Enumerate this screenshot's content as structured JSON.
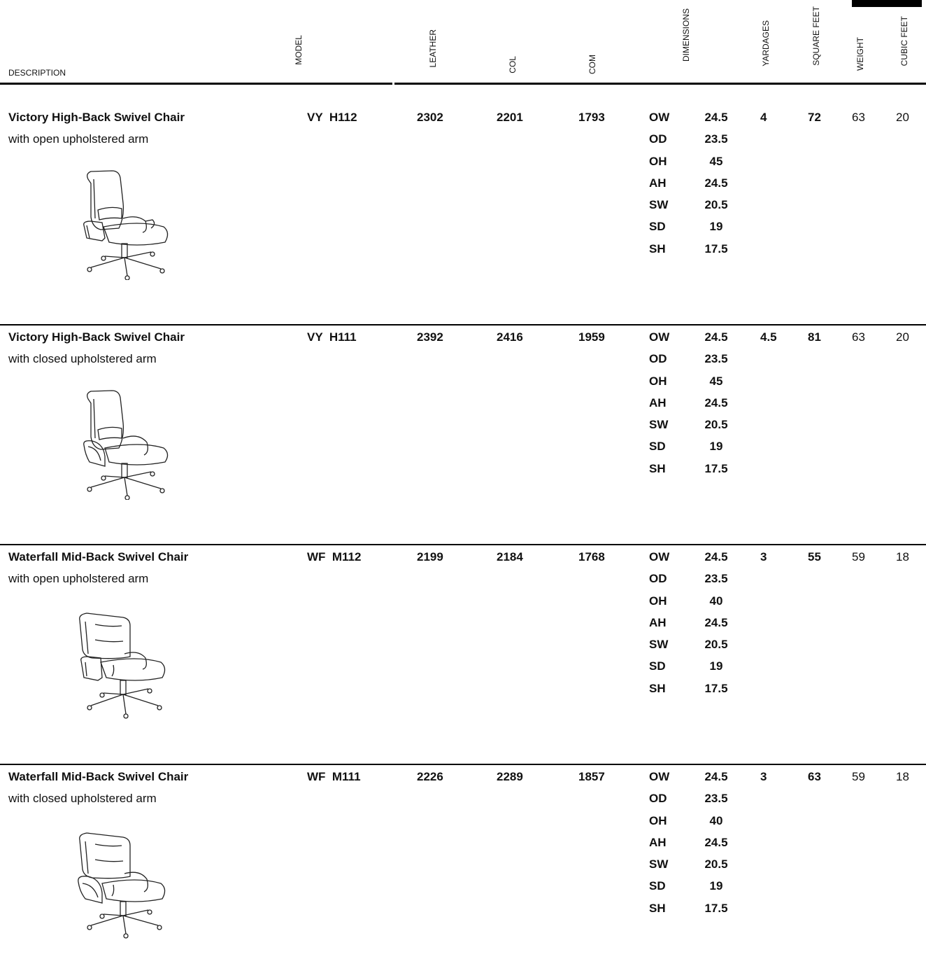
{
  "headers": {
    "description": "DESCRIPTION",
    "model": "MODEL",
    "leather": "LEATHER",
    "col": "COL",
    "com": "COM",
    "dimensions": "DIMENSIONS",
    "yardages": "YARDAGES",
    "square_feet": "SQUARE FEET",
    "weight": "WEIGHT",
    "cubic_feet": "CUBIC FEET"
  },
  "products": [
    {
      "title": "Victory High-Back Swivel Chair",
      "subtitle": "with open upholstered arm",
      "model": "VY  H112",
      "leather": "2302",
      "col": "2201",
      "com": "1793",
      "dimensions": [
        {
          "code": "OW",
          "value": "24.5"
        },
        {
          "code": "OD",
          "value": "23.5"
        },
        {
          "code": "OH",
          "value": "45"
        },
        {
          "code": "AH",
          "value": "24.5"
        },
        {
          "code": "SW",
          "value": "20.5"
        },
        {
          "code": "SD",
          "value": "19"
        },
        {
          "code": "SH",
          "value": "17.5"
        }
      ],
      "yardages": "4",
      "square_feet": "72",
      "weight": "63",
      "cubic_feet": "20",
      "image_icon": "high-back-chair-open-arm-icon"
    },
    {
      "title": "Victory High-Back Swivel Chair",
      "subtitle": "with closed upholstered arm",
      "model": "VY  H111",
      "leather": "2392",
      "col": "2416",
      "com": "1959",
      "dimensions": [
        {
          "code": "OW",
          "value": "24.5"
        },
        {
          "code": "OD",
          "value": "23.5"
        },
        {
          "code": "OH",
          "value": "45"
        },
        {
          "code": "AH",
          "value": "24.5"
        },
        {
          "code": "SW",
          "value": "20.5"
        },
        {
          "code": "SD",
          "value": "19"
        },
        {
          "code": "SH",
          "value": "17.5"
        }
      ],
      "yardages": "4.5",
      "square_feet": "81",
      "weight": "63",
      "cubic_feet": "20",
      "image_icon": "high-back-chair-closed-arm-icon"
    },
    {
      "title": "Waterfall Mid-Back Swivel Chair",
      "subtitle": "with open upholstered arm",
      "model": "WF  M112",
      "leather": "2199",
      "col": "2184",
      "com": "1768",
      "dimensions": [
        {
          "code": "OW",
          "value": "24.5"
        },
        {
          "code": "OD",
          "value": "23.5"
        },
        {
          "code": "OH",
          "value": "40"
        },
        {
          "code": "AH",
          "value": "24.5"
        },
        {
          "code": "SW",
          "value": "20.5"
        },
        {
          "code": "SD",
          "value": "19"
        },
        {
          "code": "SH",
          "value": "17.5"
        }
      ],
      "yardages": "3",
      "square_feet": "55",
      "weight": "59",
      "cubic_feet": "18",
      "image_icon": "mid-back-chair-open-arm-icon"
    },
    {
      "title": "Waterfall Mid-Back Swivel Chair",
      "subtitle": "with closed upholstered arm",
      "model": "WF  M111",
      "leather": "2226",
      "col": "2289",
      "com": "1857",
      "dimensions": [
        {
          "code": "OW",
          "value": "24.5"
        },
        {
          "code": "OD",
          "value": "23.5"
        },
        {
          "code": "OH",
          "value": "40"
        },
        {
          "code": "AH",
          "value": "24.5"
        },
        {
          "code": "SW",
          "value": "20.5"
        },
        {
          "code": "SD",
          "value": "19"
        },
        {
          "code": "SH",
          "value": "17.5"
        }
      ],
      "yardages": "3",
      "square_feet": "63",
      "weight": "59",
      "cubic_feet": "18",
      "image_icon": "mid-back-chair-closed-arm-icon"
    }
  ]
}
